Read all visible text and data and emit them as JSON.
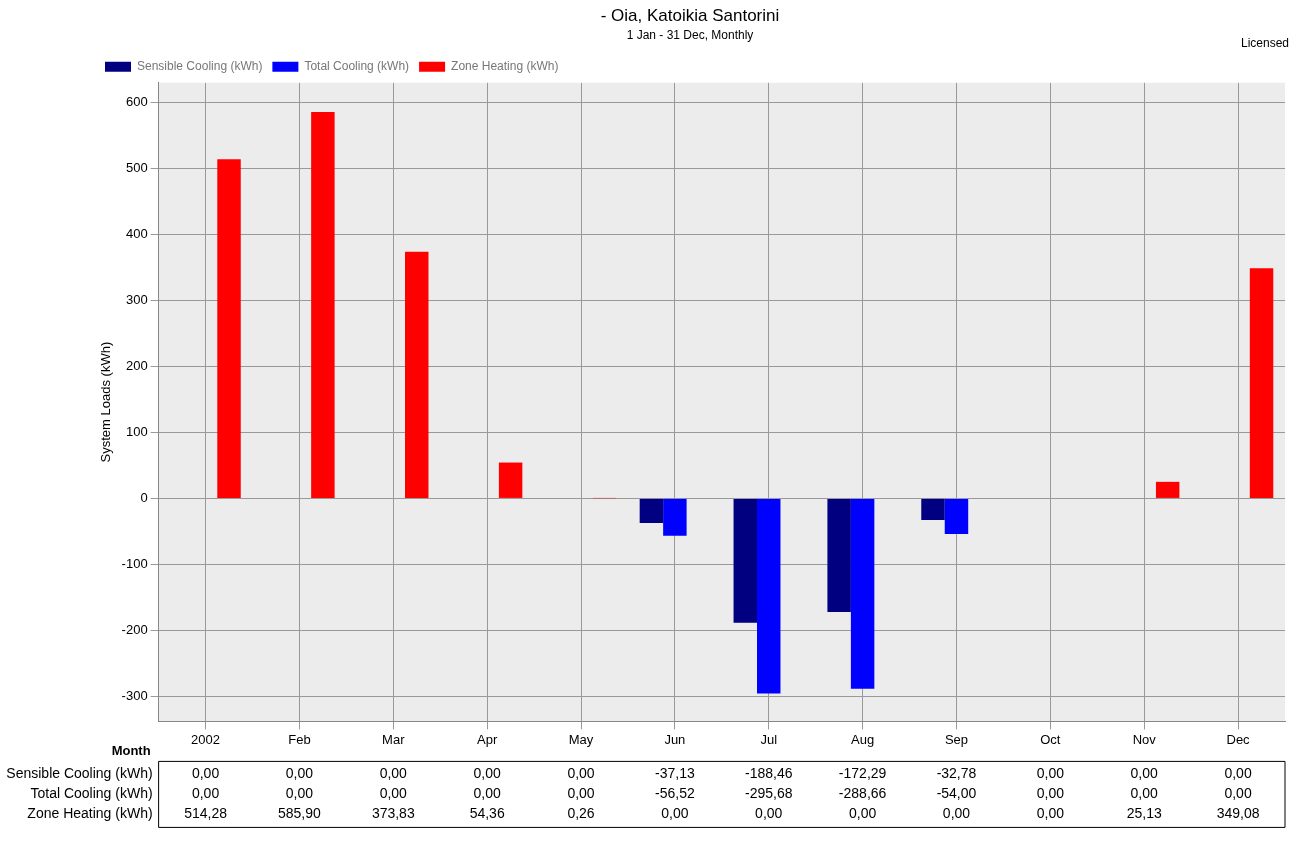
{
  "chart_data": {
    "type": "bar",
    "title": "- Oia, Katoikia Santorini",
    "subtitle": "1 Jan - 31 Dec, Monthly",
    "xlabel": "Month",
    "ylabel": "System Loads (kWh)",
    "categories": [
      "2002",
      "Feb",
      "Mar",
      "Apr",
      "May",
      "Jun",
      "Jul",
      "Aug",
      "Sep",
      "Oct",
      "Nov",
      "Dec"
    ],
    "series": [
      {
        "name": "Sensible Cooling (kWh)",
        "color": "#000080",
        "values": [
          0,
          0,
          0,
          0,
          0,
          -37.13,
          -188.46,
          -172.29,
          -32.78,
          0,
          0,
          0
        ],
        "value_labels": [
          "0,00",
          "0,00",
          "0,00",
          "0,00",
          "0,00",
          "-37,13",
          "-188,46",
          "-172,29",
          "-32,78",
          "0,00",
          "0,00",
          "0,00"
        ]
      },
      {
        "name": "Total Cooling (kWh)",
        "color": "#0000ff",
        "values": [
          0,
          0,
          0,
          0,
          0,
          -56.52,
          -295.68,
          -288.66,
          -54.0,
          0,
          0,
          0
        ],
        "value_labels": [
          "0,00",
          "0,00",
          "0,00",
          "0,00",
          "0,00",
          "-56,52",
          "-295,68",
          "-288,66",
          "-54,00",
          "0,00",
          "0,00",
          "0,00"
        ]
      },
      {
        "name": "Zone Heating (kWh)",
        "color": "#ff0000",
        "values": [
          514.28,
          585.9,
          373.83,
          54.36,
          0.26,
          0,
          0,
          0,
          0,
          0,
          25.13,
          349.08
        ],
        "value_labels": [
          "514,28",
          "585,90",
          "373,83",
          "54,36",
          "0,26",
          "0,00",
          "0,00",
          "0,00",
          "0,00",
          "0,00",
          "25,13",
          "349,08"
        ]
      }
    ],
    "ylim": [
      -338,
      630
    ],
    "yticks": [
      -300,
      -200,
      -100,
      0,
      100,
      200,
      300,
      400,
      500,
      600
    ],
    "grid": true,
    "legend": "top left",
    "annotations": [
      "Licensed"
    ]
  }
}
